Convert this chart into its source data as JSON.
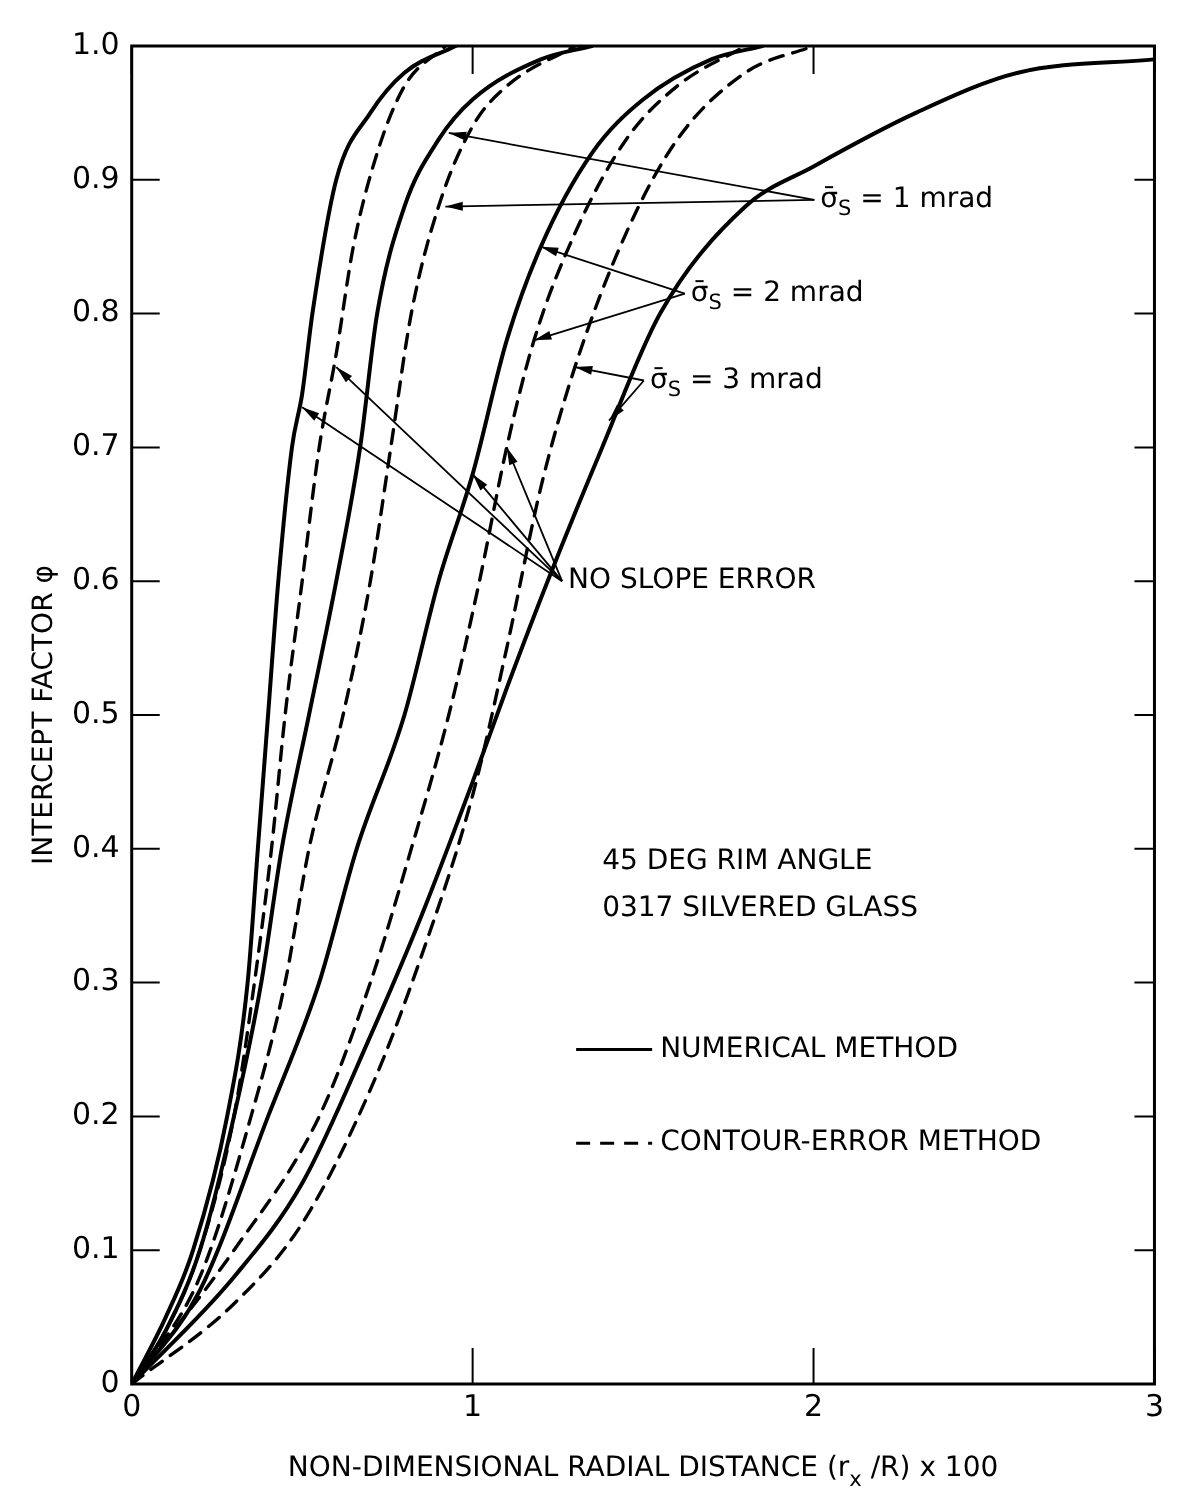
{
  "chart_data": {
    "type": "line",
    "xlabel": "NON-DIMENSIONAL RADIAL DISTANCE (r$_{x}$ /R) x 100",
    "ylabel": "INTERCEPT FACTOR φ",
    "xlim": [
      0,
      3
    ],
    "xticks": [
      0,
      1,
      2,
      3
    ],
    "ylim": [
      0,
      1
    ],
    "yticks": [
      0,
      0.1,
      0.2,
      0.3,
      0.4,
      0.5,
      0.6,
      0.7,
      0.8,
      0.9,
      {
        "value": 1,
        "label": "1.0"
      }
    ],
    "grid": false,
    "legend": false,
    "marker": "none",
    "annotations": [
      {
        "text": "σ̄$_{S}$ = 1 mrad",
        "x": 0.93,
        "y": 0.935
      },
      {
        "text": "σ̄$_{S}$ = 2 mrad",
        "x": 1.2,
        "y": 0.85
      },
      {
        "text": "σ̄$_{S}$ = 3 mrad",
        "x": 1.3,
        "y": 0.76
      },
      {
        "text": "NO SLOPE ERROR",
        "x": 0.5,
        "y": 0.73
      },
      "45 DEG RIM ANGLE",
      "0317 SILVERED GLASS",
      "NUMERICAL METHOD",
      "CONTOUR-ERROR METHOD"
    ],
    "series": [
      {
        "color": "#000000",
        "line_style": "solid",
        "x": [
          0,
          0.1,
          0.18,
          0.28,
          0.34,
          0.37,
          0.4,
          0.43,
          0.47,
          0.5,
          0.53,
          0.6,
          0.7,
          0.8,
          0.95
        ],
        "values": [
          0,
          0.05,
          0.1,
          0.2,
          0.3,
          0.4,
          0.5,
          0.6,
          0.7,
          0.74,
          0.8,
          0.9,
          0.95,
          0.98,
          1
        ]
      },
      {
        "color": "#000000",
        "line_style": "dashed",
        "x": [
          0,
          0.1,
          0.2,
          0.3,
          0.36,
          0.41,
          0.45,
          0.5,
          0.55,
          0.6,
          0.65,
          0.72,
          0.8,
          0.92
        ],
        "values": [
          0,
          0.04,
          0.1,
          0.2,
          0.3,
          0.4,
          0.5,
          0.6,
          0.7,
          0.77,
          0.85,
          0.92,
          0.97,
          1
        ]
      },
      {
        "color": "#000000",
        "line_style": "solid",
        "x": [
          0,
          0.1,
          0.2,
          0.3,
          0.38,
          0.44,
          0.52,
          0.6,
          0.67,
          0.72,
          0.8,
          0.9,
          1,
          1.2,
          1.35
        ],
        "values": [
          0,
          0.04,
          0.1,
          0.2,
          0.3,
          0.4,
          0.5,
          0.6,
          0.7,
          0.8,
          0.88,
          0.93,
          0.96,
          0.99,
          1
        ]
      },
      {
        "color": "#000000",
        "line_style": "dashed",
        "x": [
          0,
          0.2,
          0.35,
          0.45,
          0.52,
          0.62,
          0.7,
          0.76,
          0.82,
          0.9,
          1,
          1.1,
          1.3
        ],
        "values": [
          0,
          0.08,
          0.2,
          0.3,
          0.4,
          0.5,
          0.6,
          0.7,
          0.8,
          0.88,
          0.94,
          0.97,
          1
        ]
      },
      {
        "color": "#000000",
        "line_style": "solid",
        "x": [
          0,
          0.2,
          0.4,
          0.55,
          0.66,
          0.8,
          0.9,
          1,
          1.1,
          1.2,
          1.35,
          1.5,
          1.7,
          1.85
        ],
        "values": [
          0,
          0.07,
          0.2,
          0.3,
          0.4,
          0.5,
          0.6,
          0.68,
          0.78,
          0.85,
          0.92,
          0.96,
          0.99,
          1
        ]
      },
      {
        "color": "#000000",
        "line_style": "dashed",
        "x": [
          0,
          0.3,
          0.55,
          0.7,
          0.82,
          0.93,
          1.02,
          1.1,
          1.18,
          1.3,
          1.45,
          1.6,
          1.8
        ],
        "values": [
          0,
          0.1,
          0.2,
          0.3,
          0.4,
          0.5,
          0.6,
          0.7,
          0.78,
          0.86,
          0.93,
          0.97,
          1
        ]
      },
      {
        "color": "#000000",
        "line_style": "solid",
        "x": [
          0,
          0.3,
          0.5,
          0.7,
          0.85,
          1,
          1.1,
          1.22,
          1.38,
          1.55,
          1.8,
          2,
          2.3,
          2.6,
          3
        ],
        "values": [
          0,
          0.08,
          0.15,
          0.26,
          0.35,
          0.45,
          0.52,
          0.6,
          0.7,
          0.8,
          0.88,
          0.91,
          0.95,
          0.98,
          0.99
        ]
      },
      {
        "color": "#000000",
        "line_style": "dashed",
        "x": [
          0,
          0.3,
          0.5,
          0.7,
          0.85,
          1,
          1.1,
          1.2,
          1.3,
          1.45,
          1.6,
          1.8,
          2
        ],
        "values": [
          0,
          0.06,
          0.12,
          0.22,
          0.32,
          0.44,
          0.55,
          0.67,
          0.76,
          0.86,
          0.93,
          0.98,
          1
        ]
      }
    ]
  }
}
